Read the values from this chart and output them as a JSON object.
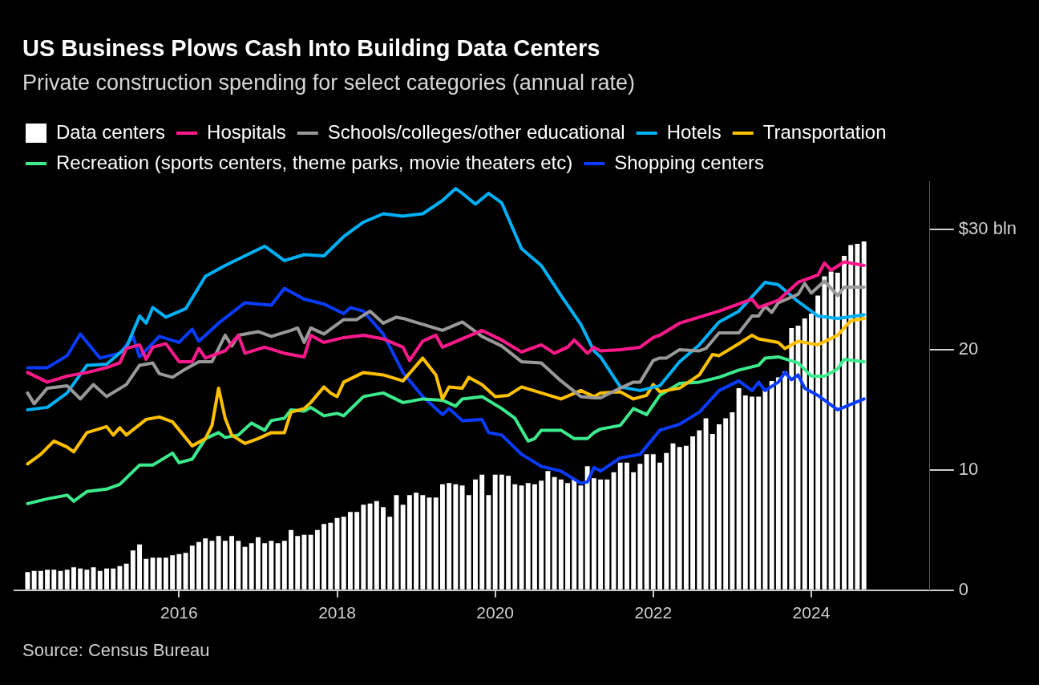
{
  "chart_data": {
    "type": "line",
    "title": "US Business Plows Cash Into Building Data Centers",
    "subtitle": "Private construction spending for select categories (annual rate)",
    "annotations": [
      "Source: Census Bureau"
    ],
    "x": [
      "2014-02",
      "2014-03",
      "2014-04",
      "2014-05",
      "2014-06",
      "2014-07",
      "2014-08",
      "2014-09",
      "2014-10",
      "2014-11",
      "2014-12",
      "2015-01",
      "2015-02",
      "2015-03",
      "2015-04",
      "2015-05",
      "2015-06",
      "2015-07",
      "2015-08",
      "2015-09",
      "2015-10",
      "2015-11",
      "2015-12",
      "2016-01",
      "2016-02",
      "2016-03",
      "2016-04",
      "2016-05",
      "2016-06",
      "2016-07",
      "2016-08",
      "2016-09",
      "2016-10",
      "2016-11",
      "2016-12",
      "2017-01",
      "2017-02",
      "2017-03",
      "2017-04",
      "2017-05",
      "2017-06",
      "2017-07",
      "2017-08",
      "2017-09",
      "2017-10",
      "2017-11",
      "2017-12",
      "2018-01",
      "2018-02",
      "2018-03",
      "2018-04",
      "2018-05",
      "2018-06",
      "2018-07",
      "2018-08",
      "2018-09",
      "2018-10",
      "2018-11",
      "2018-12",
      "2019-01",
      "2019-02",
      "2019-03",
      "2019-04",
      "2019-05",
      "2019-06",
      "2019-07",
      "2019-08",
      "2019-09",
      "2019-10",
      "2019-11",
      "2019-12",
      "2020-01",
      "2020-02",
      "2020-03",
      "2020-04",
      "2020-05",
      "2020-06",
      "2020-07",
      "2020-08",
      "2020-09",
      "2020-10",
      "2020-11",
      "2020-12",
      "2021-01",
      "2021-02",
      "2021-03",
      "2021-04",
      "2021-05",
      "2021-06",
      "2021-07",
      "2021-08",
      "2021-09",
      "2021-10",
      "2021-11",
      "2021-12",
      "2022-01",
      "2022-02",
      "2022-03",
      "2022-04",
      "2022-05",
      "2022-06",
      "2022-07",
      "2022-08",
      "2022-09",
      "2022-10",
      "2022-11",
      "2022-12",
      "2023-01",
      "2023-02",
      "2023-03",
      "2023-04",
      "2023-05",
      "2023-06",
      "2023-07",
      "2023-08",
      "2023-09",
      "2023-10",
      "2023-11",
      "2023-12",
      "2024-01",
      "2024-02",
      "2024-03",
      "2024-04",
      "2024-05",
      "2024-06",
      "2024-07",
      "2024-08",
      "2024-09"
    ],
    "series": [
      {
        "name": "Data centers",
        "type": "bar",
        "color": "#ffffff",
        "values": [
          1.5,
          1.6,
          1.6,
          1.7,
          1.7,
          1.6,
          1.7,
          1.9,
          1.8,
          1.7,
          1.9,
          1.6,
          1.8,
          1.8,
          2.0,
          2.2,
          3.3,
          3.8,
          2.6,
          2.7,
          2.7,
          2.7,
          2.9,
          3.0,
          3.1,
          3.7,
          4.0,
          4.3,
          4.1,
          4.5,
          4.1,
          4.5,
          4.1,
          3.6,
          3.9,
          4.4,
          3.9,
          4.1,
          3.9,
          4.1,
          5.0,
          4.5,
          4.6,
          4.6,
          5.0,
          5.5,
          5.6,
          6.0,
          6.1,
          6.5,
          6.5,
          7.1,
          7.2,
          7.4,
          6.9,
          6.1,
          7.9,
          7.1,
          7.9,
          8.1,
          7.9,
          7.7,
          7.7,
          8.8,
          8.9,
          8.8,
          8.7,
          7.9,
          9.2,
          9.6,
          7.9,
          9.6,
          9.6,
          9.5,
          8.8,
          8.7,
          8.9,
          8.8,
          9.1,
          9.9,
          9.4,
          9.2,
          8.9,
          9.2,
          8.7,
          10.3,
          9.3,
          9.2,
          9.2,
          9.8,
          10.6,
          10.6,
          9.8,
          10.5,
          11.3,
          11.3,
          10.6,
          11.4,
          12.2,
          11.9,
          12.0,
          12.8,
          13.3,
          14.3,
          13.0,
          13.8,
          14.3,
          14.8,
          16.8,
          16.2,
          16.1,
          16.1,
          16.6,
          17.4,
          17.7,
          18.2,
          21.8,
          22.0,
          22.6,
          23.0,
          24.5,
          26.1,
          26.5,
          26.4,
          27.8,
          28.7,
          28.8,
          29.0
        ]
      },
      {
        "name": "Hospitals",
        "color": "#ff1a8c",
        "x": [
          "2014-02",
          "2014-05",
          "2014-08",
          "2014-11",
          "2015-02",
          "2015-04",
          "2015-05",
          "2015-07",
          "2015-08",
          "2015-09",
          "2015-11",
          "2016-01",
          "2016-03",
          "2016-04",
          "2016-05",
          "2016-08",
          "2016-10",
          "2016-11",
          "2017-02",
          "2017-05",
          "2017-08",
          "2017-09",
          "2017-11",
          "2018-02",
          "2018-05",
          "2018-08",
          "2018-11",
          "2018-12",
          "2019-02",
          "2019-04",
          "2019-05",
          "2019-08",
          "2019-11",
          "2020-02",
          "2020-05",
          "2020-08",
          "2020-10",
          "2020-12",
          "2021-01",
          "2021-03",
          "2021-04",
          "2021-05",
          "2021-08",
          "2021-11",
          "2022-01",
          "2022-02",
          "2022-05",
          "2022-08",
          "2022-11",
          "2023-02",
          "2023-04",
          "2023-05",
          "2023-08",
          "2023-11",
          "2024-02",
          "2024-03",
          "2024-04",
          "2024-06",
          "2024-09"
        ],
        "values": [
          18.1,
          17.3,
          17.8,
          18.1,
          18.5,
          18.9,
          20.1,
          20.4,
          19.2,
          20.2,
          20.5,
          19.0,
          19.0,
          20.1,
          19.3,
          19.9,
          21.2,
          19.7,
          20.2,
          19.7,
          19.4,
          21.2,
          20.6,
          21.0,
          21.2,
          20.9,
          20.2,
          19.1,
          20.7,
          21.2,
          20.2,
          20.9,
          21.6,
          20.8,
          19.8,
          20.4,
          19.7,
          20.2,
          20.8,
          19.7,
          20.2,
          19.9,
          20.0,
          20.2,
          21.0,
          21.2,
          22.2,
          22.7,
          23.2,
          23.8,
          24.2,
          23.5,
          24.1,
          25.6,
          26.2,
          27.2,
          26.6,
          27.3,
          27.0
        ]
      },
      {
        "name": "Schools/colleges/other educational",
        "color": "#999999",
        "x": [
          "2014-02",
          "2014-03",
          "2014-05",
          "2014-08",
          "2014-10",
          "2014-12",
          "2015-02",
          "2015-05",
          "2015-07",
          "2015-09",
          "2015-10",
          "2015-12",
          "2016-02",
          "2016-04",
          "2016-06",
          "2016-08",
          "2016-09",
          "2016-10",
          "2017-01",
          "2017-03",
          "2017-06",
          "2017-07",
          "2017-08",
          "2017-09",
          "2017-11",
          "2018-02",
          "2018-04",
          "2018-06",
          "2018-08",
          "2018-10",
          "2018-11",
          "2019-02",
          "2019-05",
          "2019-08",
          "2019-11",
          "2020-02",
          "2020-05",
          "2020-08",
          "2020-11",
          "2021-02",
          "2021-04",
          "2021-05",
          "2021-08",
          "2021-10",
          "2021-11",
          "2022-01",
          "2022-02",
          "2022-03",
          "2022-05",
          "2022-08",
          "2022-09",
          "2022-11",
          "2023-02",
          "2023-04",
          "2023-05",
          "2023-06",
          "2023-07",
          "2023-08",
          "2023-11",
          "2023-12",
          "2024-01",
          "2024-03",
          "2024-05",
          "2024-06",
          "2024-09"
        ],
        "values": [
          16.4,
          15.5,
          16.8,
          17.0,
          15.9,
          17.1,
          16.1,
          17.1,
          18.7,
          18.9,
          18.0,
          17.7,
          18.4,
          19.0,
          19.0,
          21.2,
          20.3,
          21.2,
          21.5,
          21.1,
          21.6,
          21.8,
          20.6,
          21.8,
          21.3,
          22.5,
          22.5,
          23.2,
          22.2,
          22.7,
          22.6,
          22.1,
          21.6,
          22.3,
          21.1,
          20.3,
          19.0,
          18.9,
          17.4,
          16.1,
          16.0,
          16.0,
          16.8,
          17.3,
          17.3,
          19.1,
          19.3,
          19.3,
          20.0,
          19.9,
          20.1,
          21.4,
          21.4,
          22.8,
          22.8,
          23.6,
          23.1,
          23.9,
          24.6,
          25.5,
          24.7,
          25.7,
          24.5,
          25.2,
          25.2
        ]
      },
      {
        "name": "Hotels",
        "color": "#00b0f6",
        "x": [
          "2014-02",
          "2014-05",
          "2014-08",
          "2014-11",
          "2015-02",
          "2015-05",
          "2015-07",
          "2015-08",
          "2015-09",
          "2015-11",
          "2016-02",
          "2016-05",
          "2016-08",
          "2016-11",
          "2017-02",
          "2017-05",
          "2017-08",
          "2017-11",
          "2018-02",
          "2018-05",
          "2018-08",
          "2018-11",
          "2019-02",
          "2019-05",
          "2019-07",
          "2019-08",
          "2019-10",
          "2019-12",
          "2020-02",
          "2020-05",
          "2020-08",
          "2020-11",
          "2021-02",
          "2021-04",
          "2021-05",
          "2021-08",
          "2021-11",
          "2022-02",
          "2022-05",
          "2022-08",
          "2022-11",
          "2023-02",
          "2023-05",
          "2023-06",
          "2023-08",
          "2023-11",
          "2024-02",
          "2024-05",
          "2024-09"
        ],
        "values": [
          15.0,
          15.2,
          16.4,
          18.7,
          18.8,
          20.2,
          22.8,
          22.2,
          23.5,
          22.7,
          23.4,
          26.1,
          27.0,
          27.8,
          28.6,
          27.4,
          27.9,
          27.8,
          29.4,
          30.6,
          31.3,
          31.1,
          31.3,
          32.4,
          33.4,
          33.0,
          32.1,
          33.0,
          32.2,
          28.4,
          27.0,
          24.5,
          22.1,
          19.9,
          19.4,
          16.9,
          16.6,
          17.0,
          19.0,
          20.4,
          22.3,
          23.2,
          25.0,
          25.6,
          25.4,
          24.0,
          22.8,
          22.6,
          22.9
        ]
      },
      {
        "name": "Transportation",
        "color": "#ffc000",
        "x": [
          "2014-02",
          "2014-04",
          "2014-06",
          "2014-08",
          "2014-09",
          "2014-11",
          "2015-02",
          "2015-03",
          "2015-04",
          "2015-05",
          "2015-08",
          "2015-10",
          "2015-12",
          "2016-03",
          "2016-05",
          "2016-06",
          "2016-07",
          "2016-08",
          "2016-09",
          "2016-11",
          "2017-01",
          "2017-03",
          "2017-05",
          "2017-06",
          "2017-08",
          "2017-09",
          "2017-11",
          "2017-12",
          "2018-01",
          "2018-02",
          "2018-05",
          "2018-08",
          "2018-11",
          "2019-02",
          "2019-04",
          "2019-05",
          "2019-06",
          "2019-08",
          "2019-09",
          "2019-11",
          "2020-01",
          "2020-03",
          "2020-05",
          "2020-08",
          "2020-11",
          "2021-02",
          "2021-04",
          "2021-05",
          "2021-08",
          "2021-10",
          "2021-12",
          "2022-01",
          "2022-02",
          "2022-05",
          "2022-08",
          "2022-10",
          "2022-11",
          "2023-02",
          "2023-04",
          "2023-05",
          "2023-08",
          "2023-09",
          "2023-11",
          "2024-02",
          "2024-05",
          "2024-07",
          "2024-09"
        ],
        "values": [
          10.5,
          11.3,
          12.4,
          11.9,
          11.5,
          13.1,
          13.6,
          12.9,
          13.5,
          12.9,
          14.2,
          14.4,
          14.0,
          12.0,
          12.6,
          13.7,
          16.8,
          14.3,
          12.9,
          12.2,
          12.6,
          13.1,
          13.1,
          14.8,
          15.1,
          15.6,
          16.9,
          16.4,
          16.1,
          17.3,
          18.1,
          17.9,
          17.4,
          19.3,
          17.9,
          15.9,
          16.9,
          16.8,
          17.7,
          17.1,
          16.1,
          16.2,
          16.9,
          16.4,
          15.9,
          16.6,
          16.1,
          16.4,
          16.5,
          15.9,
          16.2,
          17.1,
          16.5,
          16.8,
          17.9,
          19.6,
          19.5,
          20.5,
          21.2,
          20.9,
          20.6,
          20.1,
          20.7,
          20.4,
          21.2,
          22.4,
          22.6
        ]
      },
      {
        "name": "Recreation (sports centers, theme parks, movie theaters etc)",
        "color": "#3ceb8c",
        "x": [
          "2014-02",
          "2014-05",
          "2014-08",
          "2014-09",
          "2014-11",
          "2015-02",
          "2015-04",
          "2015-07",
          "2015-09",
          "2015-12",
          "2016-01",
          "2016-03",
          "2016-05",
          "2016-07",
          "2016-08",
          "2016-10",
          "2016-12",
          "2017-02",
          "2017-03",
          "2017-05",
          "2017-06",
          "2017-08",
          "2017-09",
          "2017-11",
          "2018-01",
          "2018-02",
          "2018-05",
          "2018-08",
          "2018-11",
          "2019-02",
          "2019-05",
          "2019-07",
          "2019-08",
          "2019-11",
          "2020-02",
          "2020-04",
          "2020-06",
          "2020-07",
          "2020-08",
          "2020-11",
          "2021-01",
          "2021-03",
          "2021-04",
          "2021-05",
          "2021-08",
          "2021-10",
          "2021-12",
          "2022-02",
          "2022-05",
          "2022-08",
          "2022-11",
          "2023-02",
          "2023-05",
          "2023-06",
          "2023-08",
          "2023-11",
          "2024-01",
          "2024-03",
          "2024-05",
          "2024-06",
          "2024-09"
        ],
        "values": [
          7.2,
          7.6,
          7.9,
          7.4,
          8.2,
          8.4,
          8.8,
          10.4,
          10.4,
          11.4,
          10.6,
          10.9,
          12.6,
          13.1,
          12.7,
          12.9,
          13.9,
          13.3,
          14.1,
          14.3,
          15.0,
          14.9,
          15.2,
          14.5,
          14.7,
          14.5,
          16.1,
          16.4,
          15.6,
          15.9,
          15.8,
          15.3,
          15.9,
          16.1,
          15.1,
          14.3,
          12.4,
          12.6,
          13.3,
          13.3,
          12.6,
          12.6,
          13.1,
          13.4,
          13.7,
          15.1,
          14.6,
          16.2,
          17.2,
          17.3,
          17.7,
          18.3,
          18.7,
          19.3,
          19.4,
          18.9,
          17.8,
          17.8,
          18.4,
          19.2,
          19.0
        ]
      },
      {
        "name": "Shopping centers",
        "color": "#0a3cff",
        "x": [
          "2014-02",
          "2014-05",
          "2014-08",
          "2014-10",
          "2015-01",
          "2015-04",
          "2015-06",
          "2015-07",
          "2015-10",
          "2016-01",
          "2016-03",
          "2016-04",
          "2016-07",
          "2016-11",
          "2017-03",
          "2017-05",
          "2017-08",
          "2017-11",
          "2018-02",
          "2018-03",
          "2018-05",
          "2018-08",
          "2018-11",
          "2019-02",
          "2019-05",
          "2019-06",
          "2019-08",
          "2019-11",
          "2019-12",
          "2020-02",
          "2020-05",
          "2020-08",
          "2020-11",
          "2021-02",
          "2021-03",
          "2021-04",
          "2021-05",
          "2021-08",
          "2021-11",
          "2022-02",
          "2022-05",
          "2022-08",
          "2022-11",
          "2023-02",
          "2023-04",
          "2023-05",
          "2023-06",
          "2023-08",
          "2023-09",
          "2023-10",
          "2023-11",
          "2023-12",
          "2024-02",
          "2024-05",
          "2024-09"
        ],
        "values": [
          18.5,
          18.5,
          19.5,
          21.3,
          19.3,
          19.7,
          21.1,
          19.4,
          21.1,
          20.6,
          21.7,
          20.7,
          22.2,
          23.9,
          23.7,
          25.1,
          24.2,
          23.8,
          23.0,
          23.5,
          23.2,
          21.3,
          18.1,
          16.1,
          14.6,
          15.1,
          14.1,
          14.2,
          13.1,
          12.9,
          11.3,
          10.3,
          9.9,
          8.9,
          9.0,
          10.2,
          9.9,
          11.0,
          11.3,
          13.3,
          13.8,
          14.8,
          16.6,
          17.4,
          16.6,
          17.3,
          16.6,
          17.3,
          18.1,
          17.5,
          17.9,
          16.8,
          16.2,
          15.0,
          15.9
        ]
      }
    ],
    "xlim": [
      "2013-12",
      "2025-07"
    ],
    "xticks": [
      {
        "value": "2016-01",
        "label": "2016"
      },
      {
        "value": "2018-01",
        "label": "2018"
      },
      {
        "value": "2020-01",
        "label": "2020"
      },
      {
        "value": "2022-01",
        "label": "2022"
      },
      {
        "value": "2024-01",
        "label": "2024"
      }
    ],
    "ylim": [
      0,
      34
    ],
    "yticks": [
      0,
      10,
      20,
      {
        "value": 30,
        "label": "$30 bln"
      }
    ],
    "legend": "top left",
    "marker": "none"
  }
}
